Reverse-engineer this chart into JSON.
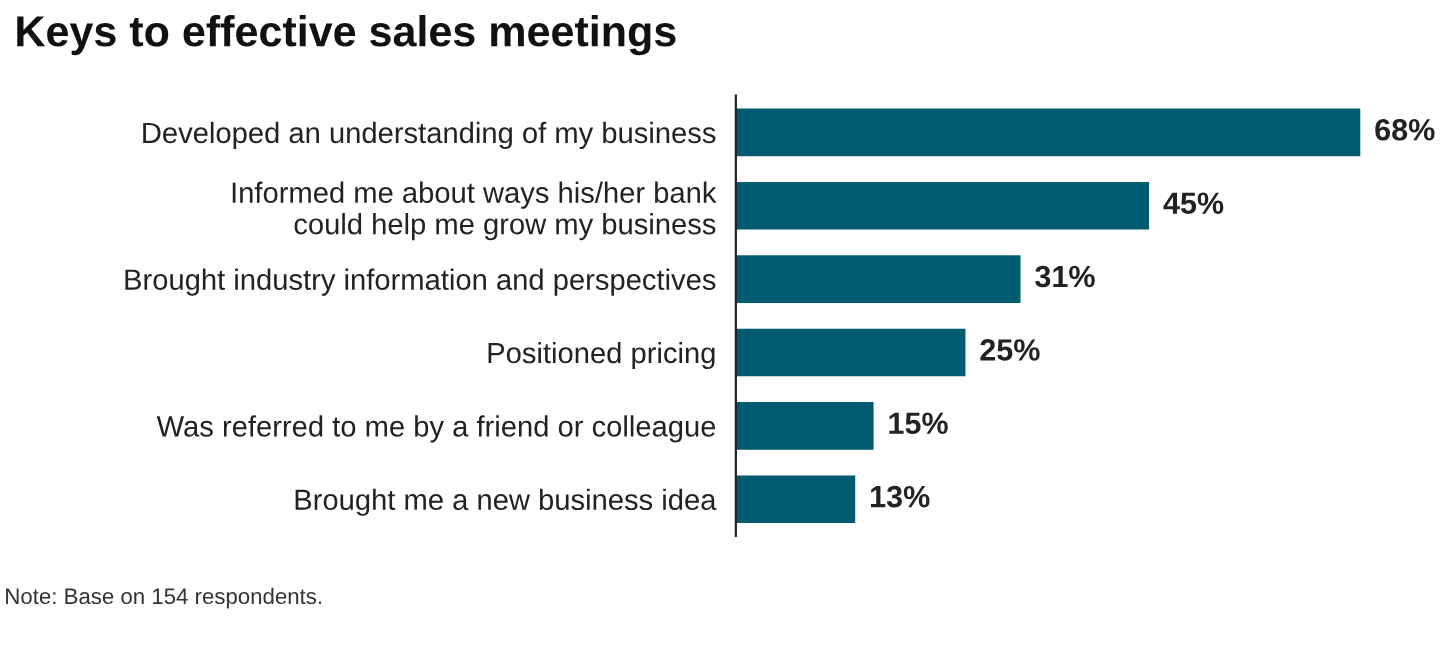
{
  "chart_data": {
    "type": "bar",
    "orientation": "horizontal",
    "title": "Keys to effective sales meetings",
    "categories": [
      "Developed an understanding of my business",
      "Informed me about ways his/her bank\ncould help me grow my business",
      "Brought industry information and perspectives",
      "Positioned pricing",
      "Was referred to me by a friend or colleague",
      "Brought me a new business idea"
    ],
    "values": [
      68,
      45,
      31,
      25,
      15,
      13
    ],
    "value_labels": [
      "68%",
      "45%",
      "31%",
      "25%",
      "15%",
      "13%"
    ],
    "color": "#005a70",
    "grid": false,
    "legend": false,
    "tick_labels": "y",
    "annotations": [
      "Note: Base on 154 respondents."
    ]
  }
}
